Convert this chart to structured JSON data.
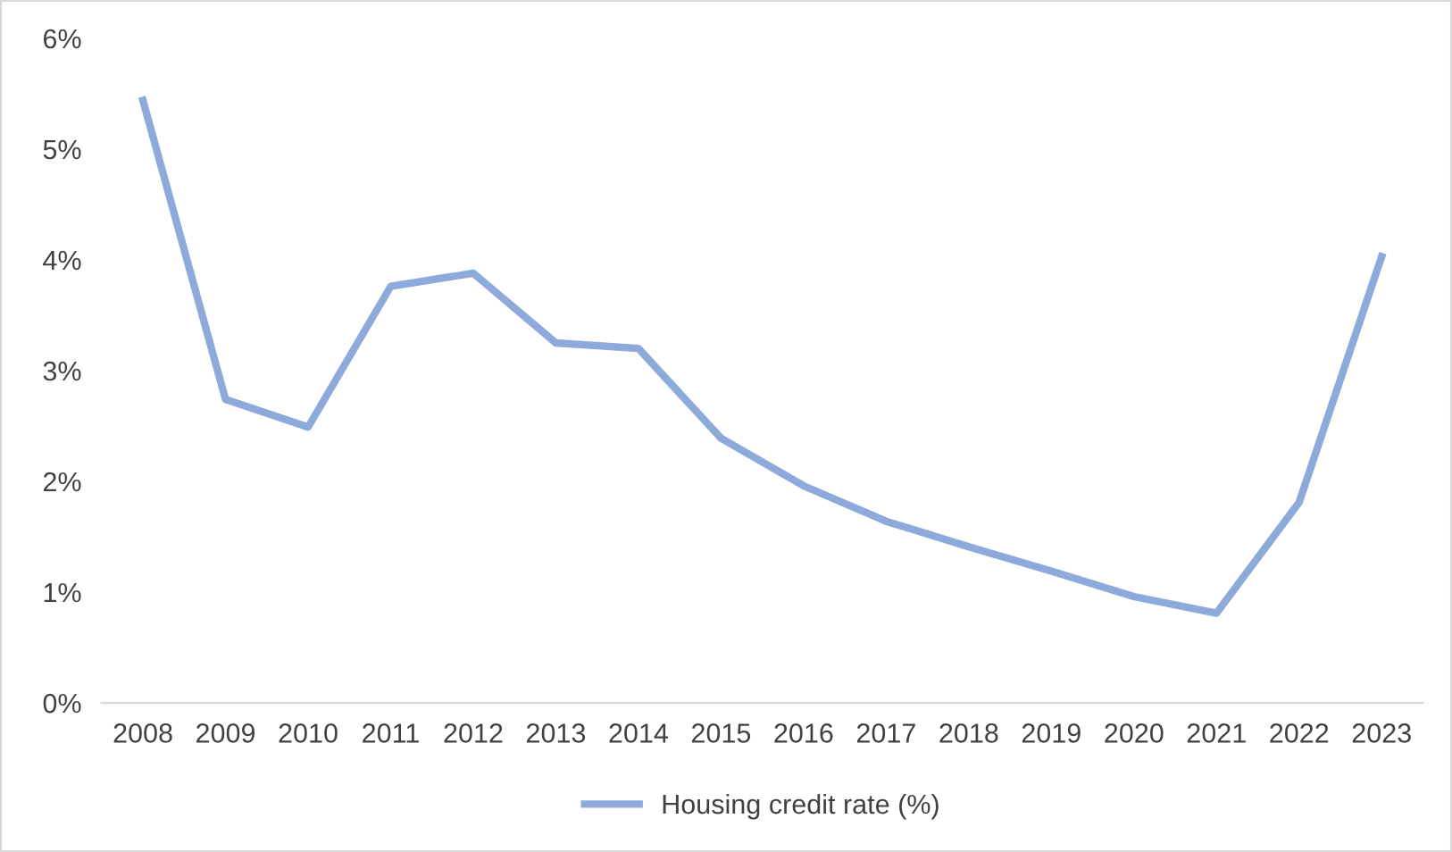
{
  "chart_data": {
    "type": "line",
    "categories": [
      "2008",
      "2009",
      "2010",
      "2011",
      "2012",
      "2013",
      "2014",
      "2015",
      "2016",
      "2017",
      "2018",
      "2019",
      "2020",
      "2021",
      "2022",
      "2023"
    ],
    "series": [
      {
        "name": "Housing credit rate (%)",
        "color": "#8eaadb",
        "values": [
          5.44,
          2.74,
          2.49,
          3.76,
          3.88,
          3.25,
          3.2,
          2.39,
          1.96,
          1.64,
          1.41,
          1.19,
          0.96,
          0.81,
          1.81,
          4.03
        ]
      }
    ],
    "ylim": [
      0,
      6
    ],
    "yticks": [
      {
        "value": 0,
        "label": "0%"
      },
      {
        "value": 1,
        "label": "1%"
      },
      {
        "value": 2,
        "label": "2%"
      },
      {
        "value": 3,
        "label": "3%"
      },
      {
        "value": 4,
        "label": "4%"
      },
      {
        "value": 5,
        "label": "5%"
      },
      {
        "value": 6,
        "label": "6%"
      }
    ],
    "grid": false,
    "legend": "bottom",
    "marker": "none",
    "line_style": "solid"
  }
}
